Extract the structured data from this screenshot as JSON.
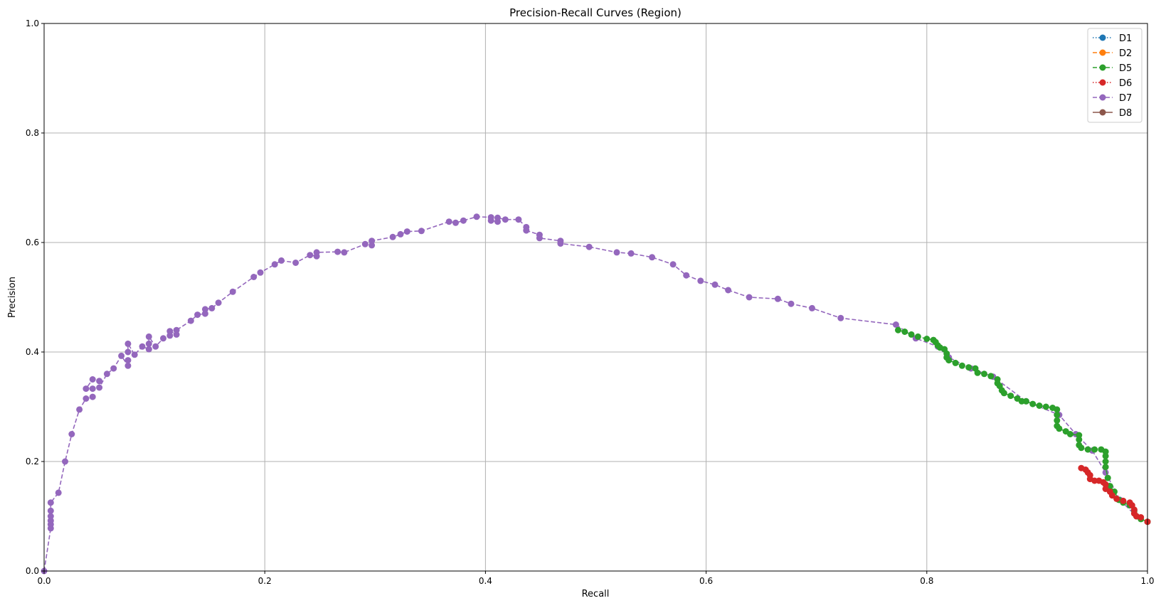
{
  "chart_data": {
    "type": "line",
    "title": "Precision-Recall Curves (Region)",
    "xlabel": "Recall",
    "ylabel": "Precision",
    "xlim": [
      0,
      1
    ],
    "ylim": [
      0,
      1
    ],
    "xticks": [
      "0.0",
      "0.2",
      "0.4",
      "0.6",
      "0.8",
      "1.0"
    ],
    "yticks": [
      "0.0",
      "0.2",
      "0.4",
      "0.6",
      "0.8",
      "1.0"
    ],
    "grid": true,
    "legend_position": "top-right",
    "series": [
      {
        "name": "D1",
        "color": "#1f77b4",
        "linestyle": "dotted",
        "points": []
      },
      {
        "name": "D2",
        "color": "#ff7f0e",
        "linestyle": "dashed",
        "points": []
      },
      {
        "name": "D5",
        "color": "#2ca02c",
        "linestyle": "dashed",
        "points": [
          [
            0.774,
            0.44
          ],
          [
            0.78,
            0.437
          ],
          [
            0.786,
            0.432
          ],
          [
            0.792,
            0.428
          ],
          [
            0.8,
            0.424
          ],
          [
            0.806,
            0.422
          ],
          [
            0.808,
            0.418
          ],
          [
            0.81,
            0.412
          ],
          [
            0.812,
            0.408
          ],
          [
            0.816,
            0.405
          ],
          [
            0.818,
            0.397
          ],
          [
            0.818,
            0.39
          ],
          [
            0.82,
            0.385
          ],
          [
            0.826,
            0.38
          ],
          [
            0.832,
            0.375
          ],
          [
            0.838,
            0.372
          ],
          [
            0.844,
            0.37
          ],
          [
            0.846,
            0.362
          ],
          [
            0.852,
            0.36
          ],
          [
            0.858,
            0.356
          ],
          [
            0.864,
            0.35
          ],
          [
            0.864,
            0.343
          ],
          [
            0.866,
            0.338
          ],
          [
            0.868,
            0.33
          ],
          [
            0.87,
            0.325
          ],
          [
            0.876,
            0.32
          ],
          [
            0.882,
            0.315
          ],
          [
            0.886,
            0.31
          ],
          [
            0.89,
            0.31
          ],
          [
            0.896,
            0.305
          ],
          [
            0.902,
            0.302
          ],
          [
            0.908,
            0.3
          ],
          [
            0.914,
            0.298
          ],
          [
            0.918,
            0.295
          ],
          [
            0.918,
            0.285
          ],
          [
            0.918,
            0.275
          ],
          [
            0.918,
            0.265
          ],
          [
            0.92,
            0.26
          ],
          [
            0.926,
            0.255
          ],
          [
            0.93,
            0.25
          ],
          [
            0.938,
            0.248
          ],
          [
            0.938,
            0.24
          ],
          [
            0.938,
            0.23
          ],
          [
            0.94,
            0.225
          ],
          [
            0.946,
            0.222
          ],
          [
            0.952,
            0.222
          ],
          [
            0.958,
            0.222
          ],
          [
            0.962,
            0.218
          ],
          [
            0.962,
            0.21
          ],
          [
            0.962,
            0.2
          ],
          [
            0.962,
            0.19
          ],
          [
            0.964,
            0.17
          ],
          [
            0.966,
            0.155
          ],
          [
            0.97,
            0.145
          ],
          [
            0.974,
            0.13
          ],
          [
            0.978,
            0.125
          ],
          [
            0.984,
            0.12
          ],
          [
            0.988,
            0.11
          ],
          [
            0.99,
            0.1
          ],
          [
            0.994,
            0.095
          ],
          [
            1.0,
            0.09
          ]
        ]
      },
      {
        "name": "D6",
        "color": "#d62728",
        "linestyle": "dotted",
        "points": [
          [
            0.94,
            0.188
          ],
          [
            0.944,
            0.185
          ],
          [
            0.946,
            0.18
          ],
          [
            0.948,
            0.175
          ],
          [
            0.948,
            0.168
          ],
          [
            0.952,
            0.165
          ],
          [
            0.956,
            0.165
          ],
          [
            0.96,
            0.162
          ],
          [
            0.962,
            0.158
          ],
          [
            0.962,
            0.15
          ],
          [
            0.966,
            0.145
          ],
          [
            0.968,
            0.138
          ],
          [
            0.972,
            0.132
          ],
          [
            0.978,
            0.128
          ],
          [
            0.984,
            0.125
          ],
          [
            0.986,
            0.12
          ],
          [
            0.988,
            0.112
          ],
          [
            0.988,
            0.105
          ],
          [
            0.99,
            0.1
          ],
          [
            0.994,
            0.098
          ],
          [
            1.0,
            0.09
          ]
        ]
      },
      {
        "name": "D7",
        "color": "#9467bd",
        "linestyle": "dashed",
        "points": [
          [
            0.0,
            0.0
          ],
          [
            0.006,
            0.078
          ],
          [
            0.006,
            0.085
          ],
          [
            0.006,
            0.092
          ],
          [
            0.006,
            0.1
          ],
          [
            0.006,
            0.11
          ],
          [
            0.006,
            0.125
          ],
          [
            0.013,
            0.143
          ],
          [
            0.019,
            0.2
          ],
          [
            0.025,
            0.25
          ],
          [
            0.032,
            0.295
          ],
          [
            0.038,
            0.315
          ],
          [
            0.044,
            0.318
          ],
          [
            0.044,
            0.333
          ],
          [
            0.038,
            0.333
          ],
          [
            0.044,
            0.35
          ],
          [
            0.05,
            0.347
          ],
          [
            0.05,
            0.335
          ],
          [
            0.057,
            0.36
          ],
          [
            0.063,
            0.37
          ],
          [
            0.07,
            0.393
          ],
          [
            0.076,
            0.375
          ],
          [
            0.076,
            0.385
          ],
          [
            0.076,
            0.4
          ],
          [
            0.076,
            0.415
          ],
          [
            0.082,
            0.395
          ],
          [
            0.089,
            0.41
          ],
          [
            0.095,
            0.405
          ],
          [
            0.095,
            0.415
          ],
          [
            0.095,
            0.428
          ],
          [
            0.101,
            0.41
          ],
          [
            0.108,
            0.425
          ],
          [
            0.114,
            0.43
          ],
          [
            0.114,
            0.438
          ],
          [
            0.12,
            0.432
          ],
          [
            0.12,
            0.44
          ],
          [
            0.133,
            0.457
          ],
          [
            0.139,
            0.468
          ],
          [
            0.146,
            0.47
          ],
          [
            0.146,
            0.478
          ],
          [
            0.152,
            0.48
          ],
          [
            0.158,
            0.49
          ],
          [
            0.171,
            0.51
          ],
          [
            0.19,
            0.537
          ],
          [
            0.196,
            0.545
          ],
          [
            0.209,
            0.56
          ],
          [
            0.215,
            0.567
          ],
          [
            0.228,
            0.563
          ],
          [
            0.241,
            0.577
          ],
          [
            0.247,
            0.575
          ],
          [
            0.247,
            0.582
          ],
          [
            0.266,
            0.583
          ],
          [
            0.272,
            0.582
          ],
          [
            0.291,
            0.597
          ],
          [
            0.297,
            0.595
          ],
          [
            0.297,
            0.603
          ],
          [
            0.316,
            0.61
          ],
          [
            0.323,
            0.615
          ],
          [
            0.329,
            0.62
          ],
          [
            0.342,
            0.621
          ],
          [
            0.367,
            0.638
          ],
          [
            0.373,
            0.636
          ],
          [
            0.38,
            0.64
          ],
          [
            0.392,
            0.647
          ],
          [
            0.405,
            0.646
          ],
          [
            0.405,
            0.64
          ],
          [
            0.411,
            0.638
          ],
          [
            0.411,
            0.645
          ],
          [
            0.418,
            0.642
          ],
          [
            0.43,
            0.642
          ],
          [
            0.437,
            0.628
          ],
          [
            0.437,
            0.622
          ],
          [
            0.449,
            0.614
          ],
          [
            0.449,
            0.608
          ],
          [
            0.468,
            0.603
          ],
          [
            0.468,
            0.598
          ],
          [
            0.494,
            0.592
          ],
          [
            0.519,
            0.582
          ],
          [
            0.532,
            0.58
          ],
          [
            0.551,
            0.573
          ],
          [
            0.57,
            0.56
          ],
          [
            0.582,
            0.54
          ],
          [
            0.595,
            0.53
          ],
          [
            0.608,
            0.523
          ],
          [
            0.62,
            0.513
          ],
          [
            0.639,
            0.5
          ],
          [
            0.665,
            0.497
          ],
          [
            0.677,
            0.488
          ],
          [
            0.696,
            0.48
          ],
          [
            0.722,
            0.462
          ],
          [
            0.772,
            0.45
          ],
          [
            0.79,
            0.425
          ],
          [
            0.81,
            0.41
          ],
          [
            0.82,
            0.39
          ],
          [
            0.84,
            0.37
          ],
          [
            0.86,
            0.355
          ],
          [
            0.89,
            0.31
          ],
          [
            0.92,
            0.285
          ],
          [
            0.935,
            0.25
          ],
          [
            0.95,
            0.22
          ],
          [
            0.962,
            0.18
          ],
          [
            0.975,
            0.13
          ],
          [
            0.99,
            0.1
          ],
          [
            1.0,
            0.09
          ]
        ]
      },
      {
        "name": "D8",
        "color": "#8c564b",
        "linestyle": "solid",
        "points": []
      }
    ]
  }
}
